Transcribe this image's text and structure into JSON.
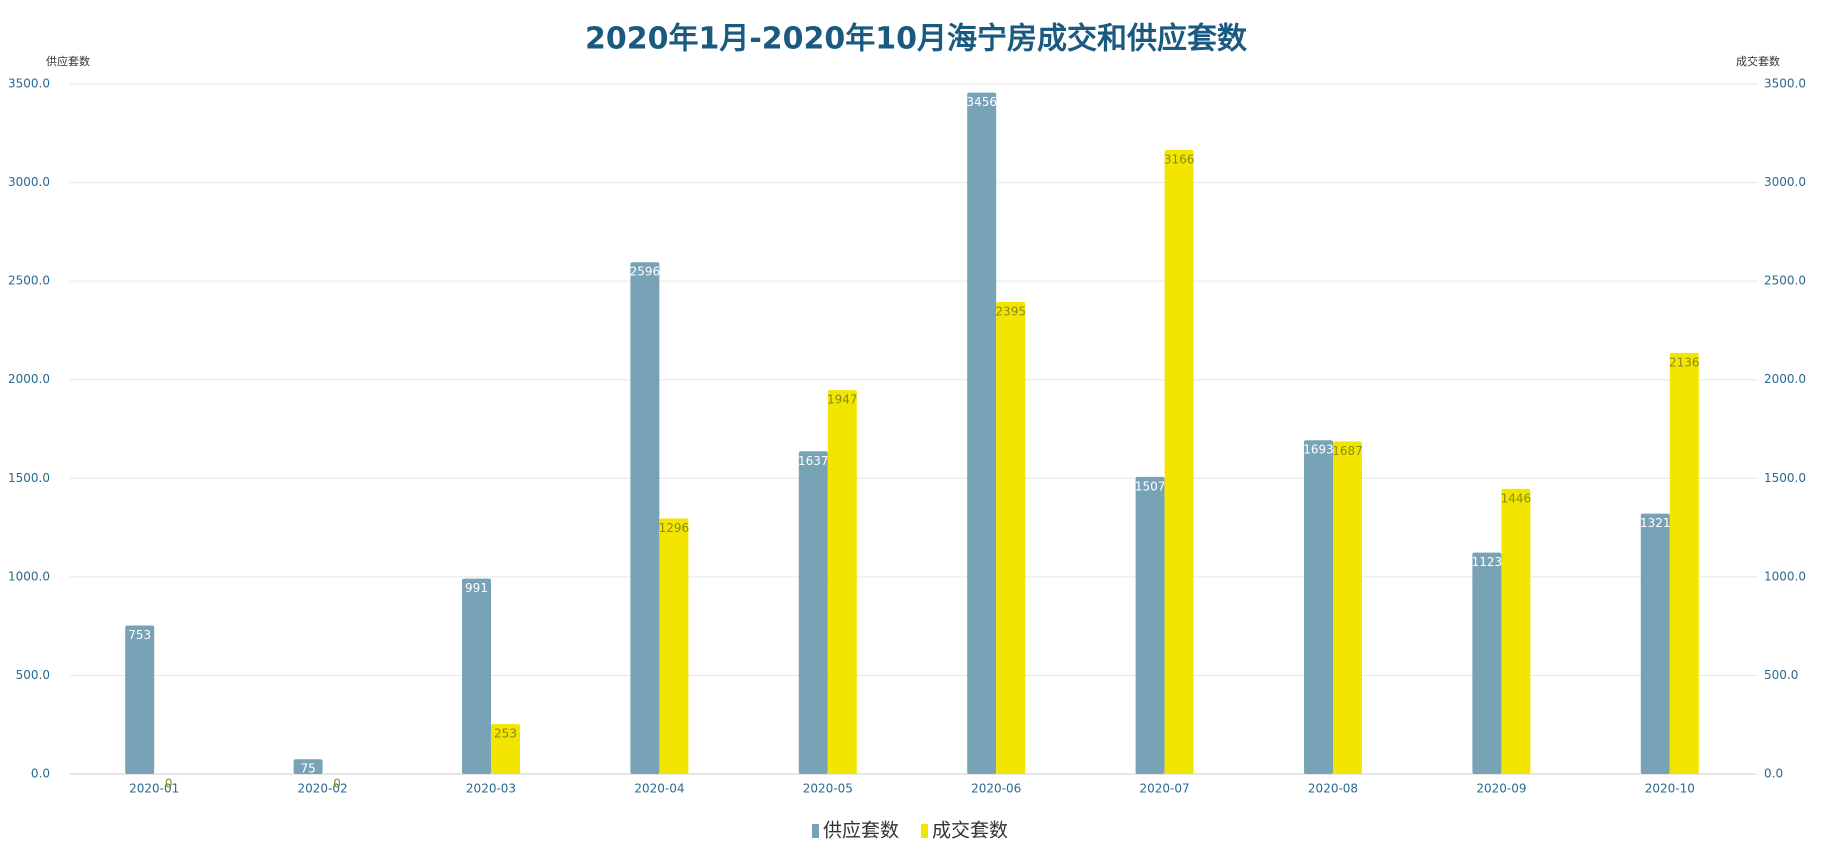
{
  "chart_data": {
    "type": "bar",
    "title": "2020年1月-2020年10月海宁房成交和供应套数",
    "y_label": "供应套数",
    "y2_label": "成交套数",
    "categories": [
      "2020-01",
      "2020-02",
      "2020-03",
      "2020-04",
      "2020-05",
      "2020-06",
      "2020-07",
      "2020-08",
      "2020-09",
      "2020-10"
    ],
    "series": [
      {
        "name": "供应套数",
        "color": "#78a2b6",
        "label_color": "#ffffff",
        "axis": "y",
        "values": [
          753,
          75,
          991,
          2596,
          1637,
          3456,
          1507,
          1693,
          1123,
          1321
        ]
      },
      {
        "name": "成交套数",
        "color": "#f2e600",
        "label_color": "#8a8a1a",
        "axis": "y2",
        "values": [
          0,
          0,
          253,
          1296,
          1947,
          2395,
          3166,
          1687,
          1446,
          2136
        ]
      }
    ],
    "ylim": [
      0,
      3500
    ],
    "yticks": [
      {
        "value": 0,
        "label": "0.0"
      },
      {
        "value": 500,
        "label": "500.0"
      },
      {
        "value": 1000,
        "label": "1000.0"
      },
      {
        "value": 1500,
        "label": "1500.0"
      },
      {
        "value": 2000,
        "label": "2000.0"
      },
      {
        "value": 2500,
        "label": "2500.0"
      },
      {
        "value": 3000,
        "label": "3000.0"
      },
      {
        "value": 3500,
        "label": "3500.0"
      }
    ],
    "y2lim": [
      0,
      3500
    ],
    "y2ticks": [
      {
        "value": 0,
        "label": "0.0"
      },
      {
        "value": 500,
        "label": "500.0"
      },
      {
        "value": 1000,
        "label": "1000.0"
      },
      {
        "value": 1500,
        "label": "1500.0"
      },
      {
        "value": 2000,
        "label": "2000.0"
      },
      {
        "value": 2500,
        "label": "2500.0"
      },
      {
        "value": 3000,
        "label": "3000.0"
      },
      {
        "value": 3500,
        "label": "3500.0"
      }
    ],
    "grid": true,
    "legend": "bottom"
  }
}
